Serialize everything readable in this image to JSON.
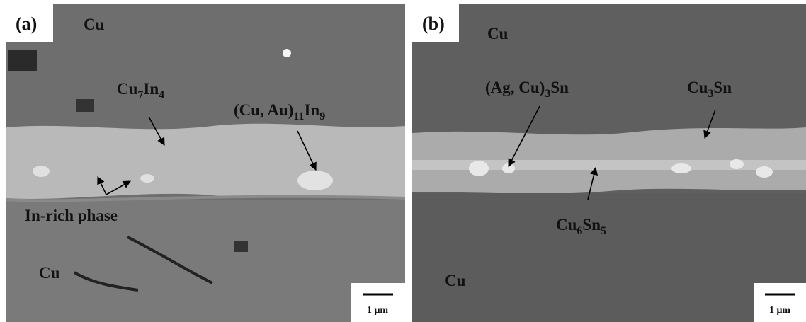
{
  "panels": [
    {
      "tag": "(a)",
      "scale_bar": "1 μm",
      "labels": [
        {
          "parts": [
            {
              "text": "Cu"
            }
          ]
        },
        {
          "parts": [
            {
              "text": "Cu"
            },
            {
              "sub": "7"
            },
            {
              "text": "In"
            },
            {
              "sub": "4"
            }
          ]
        },
        {
          "parts": [
            {
              "text": "(Cu, Au)"
            },
            {
              "sub": "11"
            },
            {
              "text": "In"
            },
            {
              "sub": "9"
            }
          ]
        },
        {
          "parts": [
            {
              "text": "In-rich phase"
            }
          ]
        },
        {
          "parts": [
            {
              "text": "Cu"
            }
          ]
        }
      ]
    },
    {
      "tag": "(b)",
      "scale_bar": "1 μm",
      "labels": [
        {
          "parts": [
            {
              "text": "Cu"
            }
          ]
        },
        {
          "parts": [
            {
              "text": "(Ag, Cu)"
            },
            {
              "sub": "3"
            },
            {
              "text": "Sn"
            }
          ]
        },
        {
          "parts": [
            {
              "text": "Cu"
            },
            {
              "sub": "3"
            },
            {
              "text": "Sn"
            }
          ]
        },
        {
          "parts": [
            {
              "text": "Cu"
            },
            {
              "sub": "6"
            },
            {
              "text": "Sn"
            },
            {
              "sub": "5"
            }
          ]
        },
        {
          "parts": [
            {
              "text": "Cu"
            }
          ]
        }
      ]
    }
  ]
}
